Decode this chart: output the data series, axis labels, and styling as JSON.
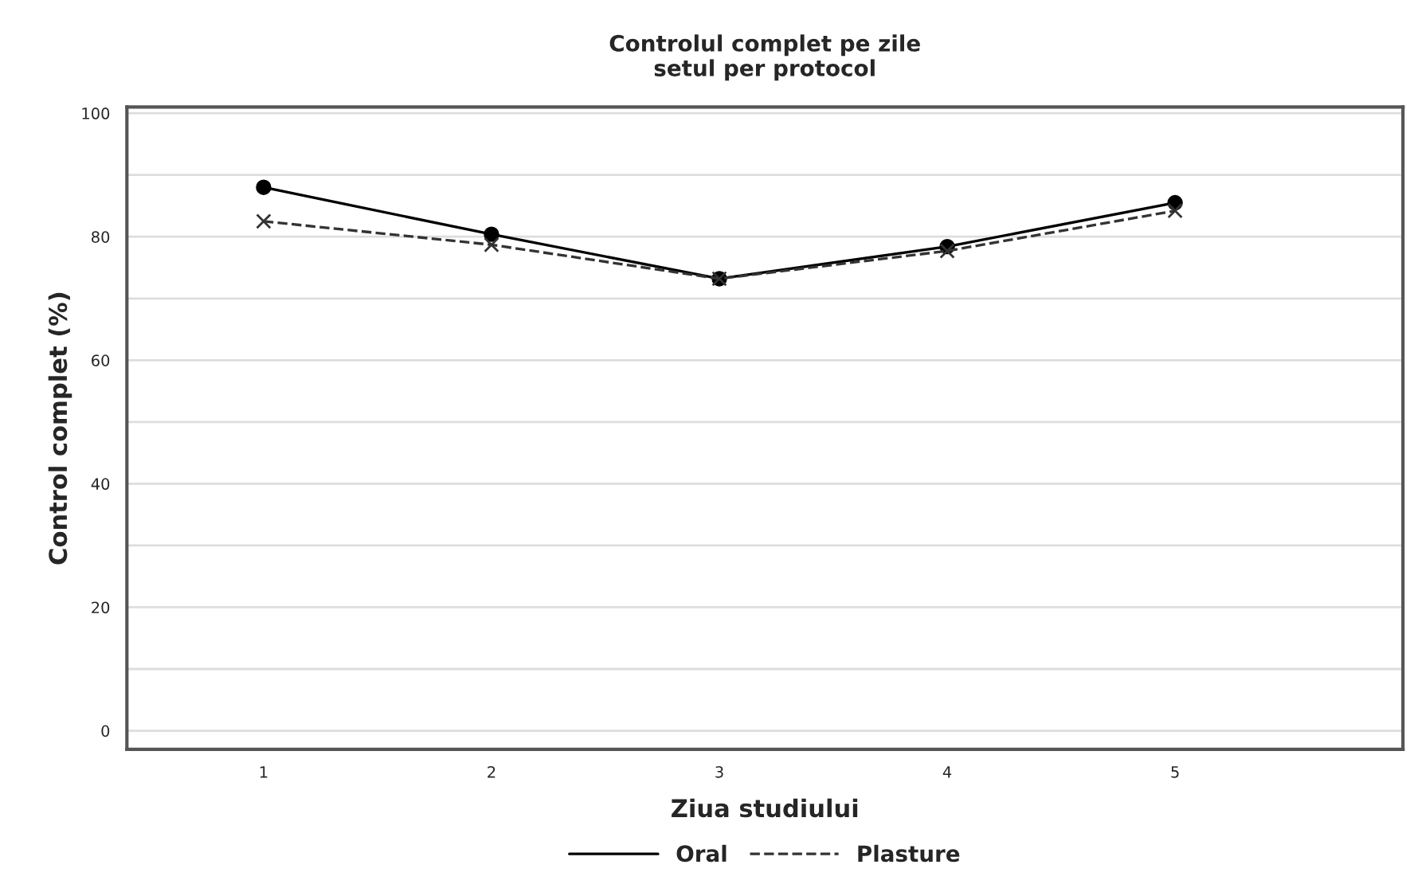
{
  "chart_data": {
    "type": "line",
    "title": "Controlul complet pe zile\nsetul per protocol",
    "xlabel": "Ziua studiului",
    "ylabel": "Control complet (%)",
    "x": [
      1,
      2,
      3,
      4,
      5
    ],
    "series": [
      {
        "name": "Oral",
        "color": "#000000",
        "marker": "circle",
        "line_style": "solid",
        "values": [
          88.0,
          80.4,
          73.2,
          78.4,
          85.5
        ]
      },
      {
        "name": "Plasture",
        "color": "#333333",
        "marker": "cross",
        "line_style": "dashed",
        "values": [
          82.5,
          78.7,
          73.2,
          77.7,
          84.2
        ]
      }
    ],
    "xlim": [
      0.4,
      6.0
    ],
    "xticks": [
      1,
      2,
      3,
      4,
      5
    ],
    "ylim": [
      -3,
      101
    ],
    "yticks": [
      0,
      {
        "value": 10,
        "label": null
      },
      20,
      {
        "value": 30,
        "label": null
      },
      40,
      {
        "value": 50,
        "label": null
      },
      60,
      {
        "value": 70,
        "label": null
      },
      80,
      {
        "value": 90,
        "label": null
      },
      100
    ],
    "grid": "y",
    "legend": "bottom"
  }
}
